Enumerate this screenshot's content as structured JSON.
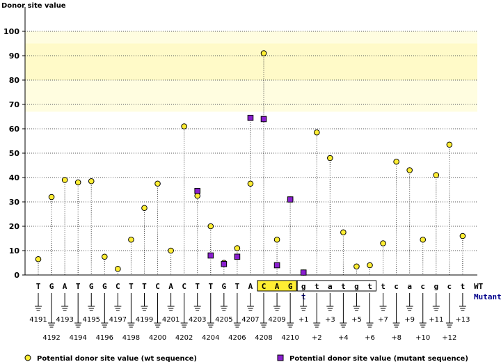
{
  "chart_data": {
    "type": "scatter",
    "ylabel": "Donor site value",
    "ylim": [
      0,
      105
    ],
    "yticks": [
      0,
      10,
      20,
      30,
      40,
      50,
      60,
      70,
      80,
      90,
      100
    ],
    "grid": true,
    "highlight_band": {
      "from": 67,
      "to": 100,
      "color": "#fffde0"
    },
    "highlight_band_strong": {
      "from": 80,
      "to": 95,
      "color": "#fffac8"
    },
    "wt_label": "WT",
    "mutant_label": "Mutant",
    "positions": [
      {
        "base": "T",
        "pos": "4191",
        "wt": 6.5
      },
      {
        "base": "G",
        "pos": "4192",
        "wt": 32
      },
      {
        "base": "A",
        "pos": "4193",
        "wt": 39
      },
      {
        "base": "T",
        "pos": "4194",
        "wt": 38
      },
      {
        "base": "G",
        "pos": "4195",
        "wt": 38.5
      },
      {
        "base": "G",
        "pos": "4196",
        "wt": 7.5
      },
      {
        "base": "C",
        "pos": "4197",
        "wt": 2.5
      },
      {
        "base": "T",
        "pos": "4198",
        "wt": 14.5
      },
      {
        "base": "T",
        "pos": "4199",
        "wt": 27.5
      },
      {
        "base": "C",
        "pos": "4200",
        "wt": 37.5
      },
      {
        "base": "A",
        "pos": "4201",
        "wt": 10
      },
      {
        "base": "C",
        "pos": "4202",
        "wt": 61
      },
      {
        "base": "T",
        "pos": "4203",
        "wt": 32.5,
        "mut": 34.5
      },
      {
        "base": "T",
        "pos": "4204",
        "wt": 20,
        "mut": 8
      },
      {
        "base": "G",
        "pos": "4205",
        "wt": 5,
        "mut": 4.5
      },
      {
        "base": "T",
        "pos": "4206",
        "wt": 11,
        "mut": 7.5
      },
      {
        "base": "A",
        "pos": "4207",
        "wt": 37.5,
        "mut": 64.5
      },
      {
        "base": "C",
        "pos": "4208",
        "wt": 91,
        "mut": 64,
        "exon_box": true
      },
      {
        "base": "A",
        "pos": "4209",
        "wt": 14.5,
        "mut": 4,
        "exon_box": true
      },
      {
        "base": "G",
        "pos": "4210",
        "wt": 31,
        "mut": 31,
        "exon_box": true
      },
      {
        "base": "g",
        "pos": "+1",
        "wt": 1,
        "mut": 1,
        "intron_box": true,
        "mutant_base": "t"
      },
      {
        "base": "t",
        "pos": "+2",
        "wt": 58.5,
        "intron_box": true
      },
      {
        "base": "a",
        "pos": "+3",
        "wt": 48,
        "intron_box": true
      },
      {
        "base": "t",
        "pos": "+4",
        "wt": 17.5,
        "intron_box": true
      },
      {
        "base": "g",
        "pos": "+5",
        "wt": 3.5,
        "intron_box": true
      },
      {
        "base": "t",
        "pos": "+6",
        "wt": 4,
        "intron_box": true
      },
      {
        "base": "t",
        "pos": "+7",
        "wt": 13
      },
      {
        "base": "c",
        "pos": "+8",
        "wt": 46.5
      },
      {
        "base": "a",
        "pos": "+9",
        "wt": 43
      },
      {
        "base": "c",
        "pos": "+10",
        "wt": 14.5
      },
      {
        "base": "g",
        "pos": "+11",
        "wt": 41
      },
      {
        "base": "c",
        "pos": "+12",
        "wt": 53.5
      },
      {
        "base": "t",
        "pos": "+13",
        "wt": 16
      }
    ],
    "series": [
      {
        "name": "Potential donor site value (wt sequence)",
        "color": "#ffee33",
        "marker": "circle"
      },
      {
        "name": "Potential donor site value (mutant sequence)",
        "color": "#8a1fcf",
        "marker": "square"
      }
    ]
  }
}
